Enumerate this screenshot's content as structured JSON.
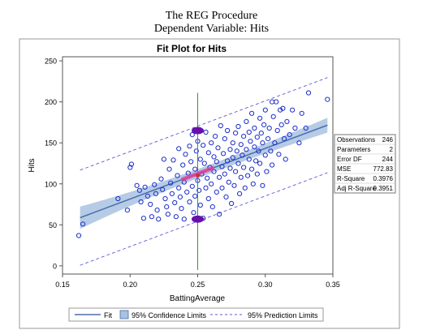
{
  "header": {
    "line1": "The REG Procedure",
    "line2": "Dependent Variable: Hits"
  },
  "colors": {
    "fit_line": "#4a6fa8",
    "confidence_band": "#a9c2e2",
    "prediction_line": "#5b5bd6",
    "points": "#1a2ec9",
    "vertical_line": "#2ca02c",
    "ellipse": "#6a0dad",
    "segment": "#e8399a",
    "center_point": "#d62728"
  },
  "chart_data": {
    "type": "scatter",
    "title": "Fit Plot for Hits",
    "xlabel": "BattingAverage",
    "ylabel": "Hits",
    "xlim": [
      0.15,
      0.35
    ],
    "ylim": [
      -10,
      255
    ],
    "x_ticks": [
      0.15,
      0.2,
      0.25,
      0.3,
      0.35
    ],
    "x_tick_labels": [
      "0.15",
      "0.20",
      "0.25",
      "0.30",
      "0.35"
    ],
    "y_ticks": [
      0,
      50,
      100,
      150,
      200,
      250
    ],
    "y_tick_labels": [
      "0",
      "50",
      "100",
      "150",
      "200",
      "250"
    ],
    "fit": {
      "intercept": -41.8,
      "slope": 616.7,
      "x_range": [
        0.163,
        0.346
      ]
    },
    "confidence_band": {
      "half_width_min": 5.5,
      "half_width_max_at_low": 13.5,
      "half_width_max_at_high": 9.0
    },
    "prediction_offset": 58,
    "annotation": {
      "vertical_line_x": 0.25,
      "vertical_line_y": [
        -5,
        211
      ],
      "upper_ellipse_y": 165,
      "lower_ellipse_y": 57,
      "center": [
        0.25,
        110
      ]
    },
    "points": [
      [
        0.162,
        37
      ],
      [
        0.165,
        51
      ],
      [
        0.191,
        82
      ],
      [
        0.198,
        68
      ],
      [
        0.2,
        120
      ],
      [
        0.201,
        124
      ],
      [
        0.205,
        98
      ],
      [
        0.207,
        92
      ],
      [
        0.208,
        78
      ],
      [
        0.21,
        58
      ],
      [
        0.211,
        96
      ],
      [
        0.213,
        85
      ],
      [
        0.215,
        75
      ],
      [
        0.216,
        60
      ],
      [
        0.218,
        99
      ],
      [
        0.219,
        88
      ],
      [
        0.22,
        68
      ],
      [
        0.221,
        57
      ],
      [
        0.223,
        106
      ],
      [
        0.224,
        93
      ],
      [
        0.225,
        130
      ],
      [
        0.226,
        82
      ],
      [
        0.227,
        72
      ],
      [
        0.228,
        63
      ],
      [
        0.229,
        118
      ],
      [
        0.23,
        101
      ],
      [
        0.231,
        88
      ],
      [
        0.232,
        129
      ],
      [
        0.233,
        77
      ],
      [
        0.234,
        60
      ],
      [
        0.235,
        110
      ],
      [
        0.236,
        95
      ],
      [
        0.236,
        143
      ],
      [
        0.237,
        84
      ],
      [
        0.238,
        70
      ],
      [
        0.239,
        123
      ],
      [
        0.24,
        102
      ],
      [
        0.24,
        57
      ],
      [
        0.241,
        136
      ],
      [
        0.242,
        90
      ],
      [
        0.243,
        113
      ],
      [
        0.244,
        78
      ],
      [
        0.244,
        146
      ],
      [
        0.245,
        127
      ],
      [
        0.246,
        97
      ],
      [
        0.246,
        160
      ],
      [
        0.247,
        65
      ],
      [
        0.248,
        118
      ],
      [
        0.248,
        85
      ],
      [
        0.249,
        140
      ],
      [
        0.25,
        104
      ],
      [
        0.25,
        152
      ],
      [
        0.251,
        92
      ],
      [
        0.252,
        130
      ],
      [
        0.252,
        74
      ],
      [
        0.253,
        112
      ],
      [
        0.254,
        147
      ],
      [
        0.254,
        58
      ],
      [
        0.255,
        125
      ],
      [
        0.256,
        95
      ],
      [
        0.256,
        163
      ],
      [
        0.257,
        107
      ],
      [
        0.258,
        138
      ],
      [
        0.258,
        82
      ],
      [
        0.259,
        120
      ],
      [
        0.26,
        150
      ],
      [
        0.26,
        100
      ],
      [
        0.261,
        72
      ],
      [
        0.262,
        133
      ],
      [
        0.262,
        115
      ],
      [
        0.263,
        158
      ],
      [
        0.264,
        90
      ],
      [
        0.264,
        127
      ],
      [
        0.265,
        144
      ],
      [
        0.266,
        108
      ],
      [
        0.266,
        63
      ],
      [
        0.267,
        171
      ],
      [
        0.268,
        121
      ],
      [
        0.268,
        95
      ],
      [
        0.269,
        137
      ],
      [
        0.27,
        112
      ],
      [
        0.27,
        155
      ],
      [
        0.271,
        84
      ],
      [
        0.272,
        128
      ],
      [
        0.272,
        165
      ],
      [
        0.273,
        102
      ],
      [
        0.274,
        142
      ],
      [
        0.274,
        119
      ],
      [
        0.275,
        76
      ],
      [
        0.276,
        150
      ],
      [
        0.276,
        132
      ],
      [
        0.277,
        98
      ],
      [
        0.278,
        162
      ],
      [
        0.278,
        115
      ],
      [
        0.279,
        140
      ],
      [
        0.28,
        125
      ],
      [
        0.28,
        170
      ],
      [
        0.281,
        88
      ],
      [
        0.282,
        148
      ],
      [
        0.282,
        108
      ],
      [
        0.283,
        135
      ],
      [
        0.284,
        158
      ],
      [
        0.284,
        120
      ],
      [
        0.285,
        95
      ],
      [
        0.286,
        176
      ],
      [
        0.286,
        142
      ],
      [
        0.287,
        110
      ],
      [
        0.288,
        130
      ],
      [
        0.288,
        163
      ],
      [
        0.289,
        152
      ],
      [
        0.29,
        118
      ],
      [
        0.29,
        186
      ],
      [
        0.291,
        100
      ],
      [
        0.292,
        145
      ],
      [
        0.292,
        168
      ],
      [
        0.293,
        128
      ],
      [
        0.294,
        157
      ],
      [
        0.294,
        112
      ],
      [
        0.295,
        140
      ],
      [
        0.296,
        180
      ],
      [
        0.296,
        125
      ],
      [
        0.297,
        162
      ],
      [
        0.298,
        150
      ],
      [
        0.298,
        98
      ],
      [
        0.299,
        172
      ],
      [
        0.3,
        135
      ],
      [
        0.3,
        190
      ],
      [
        0.301,
        115
      ],
      [
        0.302,
        155
      ],
      [
        0.303,
        168
      ],
      [
        0.304,
        140
      ],
      [
        0.305,
        200
      ],
      [
        0.305,
        123
      ],
      [
        0.306,
        182
      ],
      [
        0.307,
        150
      ],
      [
        0.308,
        200
      ],
      [
        0.309,
        165
      ],
      [
        0.31,
        136
      ],
      [
        0.311,
        190
      ],
      [
        0.312,
        172
      ],
      [
        0.313,
        192
      ],
      [
        0.314,
        155
      ],
      [
        0.315,
        130
      ],
      [
        0.316,
        176
      ],
      [
        0.318,
        160
      ],
      [
        0.32,
        190
      ],
      [
        0.322,
        168
      ],
      [
        0.325,
        150
      ],
      [
        0.327,
        186
      ],
      [
        0.33,
        168
      ],
      [
        0.332,
        211
      ],
      [
        0.346,
        203
      ]
    ]
  },
  "stats": {
    "rows": [
      {
        "label": "Observations",
        "value": "246"
      },
      {
        "label": "Parameters",
        "value": "2"
      },
      {
        "label": "Error DF",
        "value": "244"
      },
      {
        "label": "MSE",
        "value": "772.83"
      },
      {
        "label": "R-Square",
        "value": "0.3976"
      },
      {
        "label": "Adj R-Square",
        "value": "0.3951"
      }
    ]
  },
  "legend": {
    "fit": "Fit",
    "confidence": "95% Confidence Limits",
    "prediction": "95% Prediction Limits"
  }
}
